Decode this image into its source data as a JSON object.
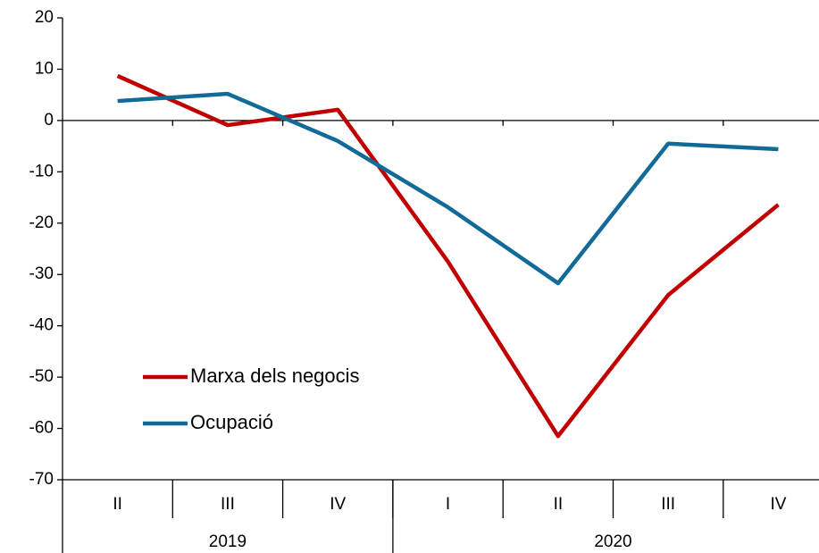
{
  "chart_data": {
    "type": "line",
    "categories": [
      "II",
      "III",
      "IV",
      "I",
      "II",
      "III",
      "IV"
    ],
    "groups": [
      {
        "label": "2019",
        "count": 3
      },
      {
        "label": "2020",
        "count": 4
      }
    ],
    "series": [
      {
        "name": "Marxa dels negocis",
        "color": "#c00000",
        "values": [
          8.7,
          -0.9,
          2.1,
          -27.5,
          -61.5,
          -34,
          -16.4
        ]
      },
      {
        "name": "Ocupació",
        "color": "#126a98",
        "values": [
          3.8,
          5.2,
          -4,
          -16.9,
          -31.7,
          -4.5,
          -5.6
        ]
      }
    ],
    "ylim": [
      -70,
      20
    ],
    "yticks": [
      -70,
      -60,
      -50,
      -40,
      -30,
      -20,
      -10,
      0,
      10,
      20
    ],
    "grid": false,
    "legend": "lower left"
  }
}
